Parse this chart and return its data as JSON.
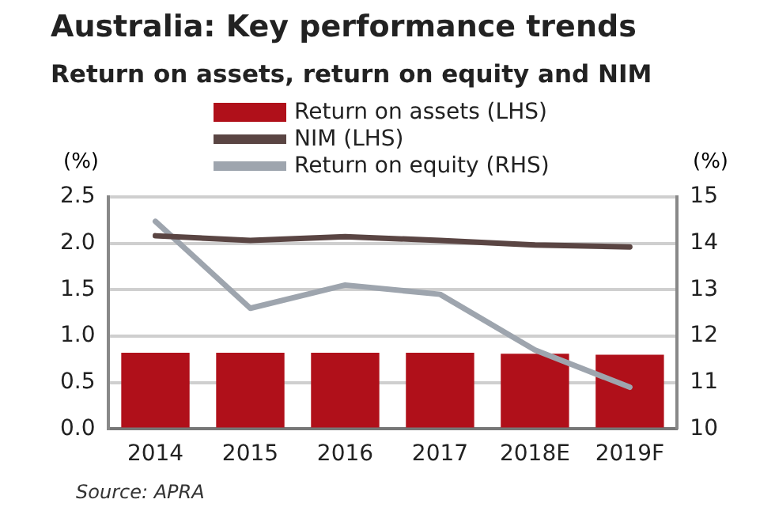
{
  "chart_data": {
    "type": "bar",
    "title": "Australia: Key performance trends",
    "subtitle": "Return on assets, return on equity and NIM",
    "categories": [
      "2014",
      "2015",
      "2016",
      "2017",
      "2018E",
      "2019F"
    ],
    "series": [
      {
        "name": "Return on assets (LHS)",
        "color": "#b0101a",
        "values": [
          0.82,
          0.82,
          0.82,
          0.82,
          0.81,
          0.8
        ]
      },
      {
        "name": "NIM (LHS)",
        "type": "line",
        "color": "#5a4543",
        "values": [
          2.08,
          2.03,
          2.07,
          2.03,
          1.98,
          1.96
        ]
      },
      {
        "name": "Return on equity (RHS)",
        "type": "line",
        "axis": "y2",
        "color": "#9ea5ae",
        "values": [
          14.47,
          12.6,
          13.1,
          12.9,
          11.7,
          10.9
        ]
      }
    ],
    "ylabel": "(%)",
    "y2label": "(%)",
    "ylim": [
      0,
      2.5
    ],
    "yticks": [
      {
        "value": 0,
        "label": "0.0"
      },
      0.5,
      {
        "value": 1,
        "label": "1.0"
      },
      1.5,
      {
        "value": 2,
        "label": "2.0"
      },
      2.5
    ],
    "y2lim": [
      10,
      15
    ],
    "y2ticks": [
      10,
      11,
      12,
      13,
      14,
      15
    ],
    "grid": "y",
    "legend": "top",
    "marker": "none",
    "annotations": [
      "Source: APRA"
    ]
  }
}
